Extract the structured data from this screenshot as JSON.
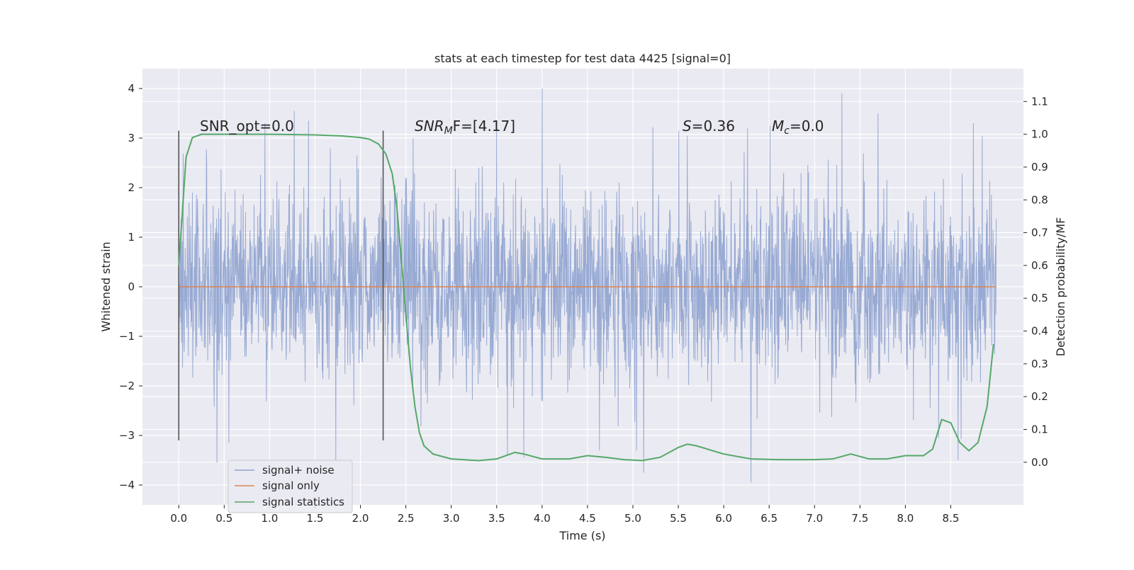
{
  "chart_data": {
    "type": "line",
    "title": "stats at each timestep for test data 4425 [signal=0]",
    "xlabel": "Time (s)",
    "ylabel_left": "Whitened strain",
    "ylabel_right": "Detection probability/MF",
    "xlim": [
      -0.4,
      9.3
    ],
    "ylim_left": [
      -4.4,
      4.4
    ],
    "ylim_right": [
      -0.13,
      1.2
    ],
    "x_ticks": [
      "0.0",
      "0.5",
      "1.0",
      "1.5",
      "2.0",
      "2.5",
      "3.0",
      "3.5",
      "4.0",
      "4.5",
      "5.0",
      "5.5",
      "6.0",
      "6.5",
      "7.0",
      "7.5",
      "8.0",
      "8.5"
    ],
    "y_left_ticks": [
      "4",
      "3",
      "2",
      "1",
      "0",
      "−1",
      "−2",
      "−3",
      "−4"
    ],
    "y_right_ticks": [
      "1.1",
      "1.0",
      "0.9",
      "0.8",
      "0.7",
      "0.6",
      "0.5",
      "0.4",
      "0.3",
      "0.2",
      "0.1",
      "0.0"
    ],
    "grid": true,
    "legend_location": "lower-left",
    "series": [
      {
        "name": "signal+ noise",
        "color": "#8fa3cf",
        "axis": "left",
        "x_range": [
          0.0,
          9.0
        ],
        "noise_std": 0.95,
        "spikes": [
          {
            "x": 0.0,
            "y": 2.75
          },
          {
            "x": 0.0,
            "y": -1.55
          },
          {
            "x": 0.42,
            "y": -3.55
          },
          {
            "x": 0.55,
            "y": -3.15
          },
          {
            "x": 0.95,
            "y": 3.3
          },
          {
            "x": 1.27,
            "y": 3.55
          },
          {
            "x": 1.43,
            "y": 3.35
          },
          {
            "x": 1.73,
            "y": -3.5
          },
          {
            "x": 2.58,
            "y": 3.0
          },
          {
            "x": 3.5,
            "y": 3.15
          },
          {
            "x": 3.62,
            "y": -3.4
          },
          {
            "x": 3.8,
            "y": -3.45
          },
          {
            "x": 4.0,
            "y": 4.0
          },
          {
            "x": 5.12,
            "y": -3.75
          },
          {
            "x": 5.6,
            "y": 3.05
          },
          {
            "x": 6.3,
            "y": -3.95
          },
          {
            "x": 7.3,
            "y": 3.9
          },
          {
            "x": 7.7,
            "y": 3.5
          },
          {
            "x": 8.58,
            "y": -3.5
          },
          {
            "x": 8.75,
            "y": 3.3
          }
        ]
      },
      {
        "name": "signal only",
        "color": "#dd8452",
        "axis": "left",
        "x": [
          0.0,
          9.0
        ],
        "y": [
          0.0,
          0.0
        ]
      },
      {
        "name": "signal statistics",
        "color": "#55a868",
        "axis": "right",
        "x": [
          0.0,
          0.08,
          0.15,
          0.25,
          0.5,
          1.0,
          1.5,
          1.8,
          2.0,
          2.1,
          2.2,
          2.28,
          2.35,
          2.4,
          2.45,
          2.5,
          2.55,
          2.6,
          2.65,
          2.7,
          2.8,
          3.0,
          3.3,
          3.5,
          3.7,
          3.8,
          4.0,
          4.3,
          4.5,
          4.7,
          4.9,
          5.1,
          5.3,
          5.5,
          5.6,
          5.7,
          6.0,
          6.3,
          6.6,
          7.0,
          7.2,
          7.4,
          7.6,
          7.8,
          8.0,
          8.2,
          8.3,
          8.4,
          8.5,
          8.6,
          8.7,
          8.8,
          8.9,
          8.97
        ],
        "y": [
          0.6,
          0.93,
          0.99,
          1.0,
          1.0,
          1.0,
          0.998,
          0.995,
          0.99,
          0.985,
          0.97,
          0.94,
          0.88,
          0.78,
          0.62,
          0.45,
          0.29,
          0.17,
          0.09,
          0.05,
          0.025,
          0.01,
          0.005,
          0.01,
          0.03,
          0.025,
          0.01,
          0.01,
          0.02,
          0.015,
          0.008,
          0.005,
          0.015,
          0.045,
          0.055,
          0.05,
          0.025,
          0.01,
          0.008,
          0.008,
          0.01,
          0.025,
          0.01,
          0.01,
          0.02,
          0.02,
          0.04,
          0.13,
          0.12,
          0.06,
          0.035,
          0.06,
          0.17,
          0.36
        ]
      }
    ],
    "vlines": [
      {
        "x": 0.0,
        "ymin": -3.1,
        "ymax": 3.15,
        "color": "#555555"
      },
      {
        "x": 2.25,
        "ymin": -3.1,
        "ymax": 3.15,
        "color": "#555555"
      }
    ],
    "annotations": {
      "snr_opt": "SNR_opt=0.0",
      "snr_mf_base": "SNR",
      "snr_mf_sub": "M",
      "snr_mf_suffix": "F=[4.17]",
      "s_var": "S",
      "s_value": "=0.36",
      "mc_var": "M",
      "mc_sub": "c",
      "mc_value": "=0.0"
    }
  }
}
